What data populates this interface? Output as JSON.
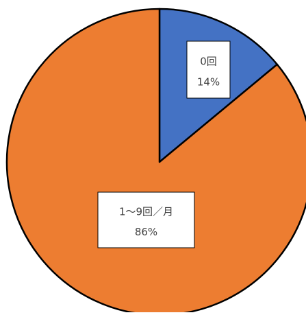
{
  "chart_data": {
    "type": "pie",
    "title": "",
    "labels": [
      "0回",
      "1〜9回／月"
    ],
    "values": [
      14,
      86
    ],
    "unit": "%",
    "value_labels": [
      "14%",
      "86%"
    ],
    "colors": [
      "#4472C4",
      "#ED7D31"
    ],
    "start_angle_deg": 0,
    "direction": "clockwise",
    "legend": "none"
  }
}
